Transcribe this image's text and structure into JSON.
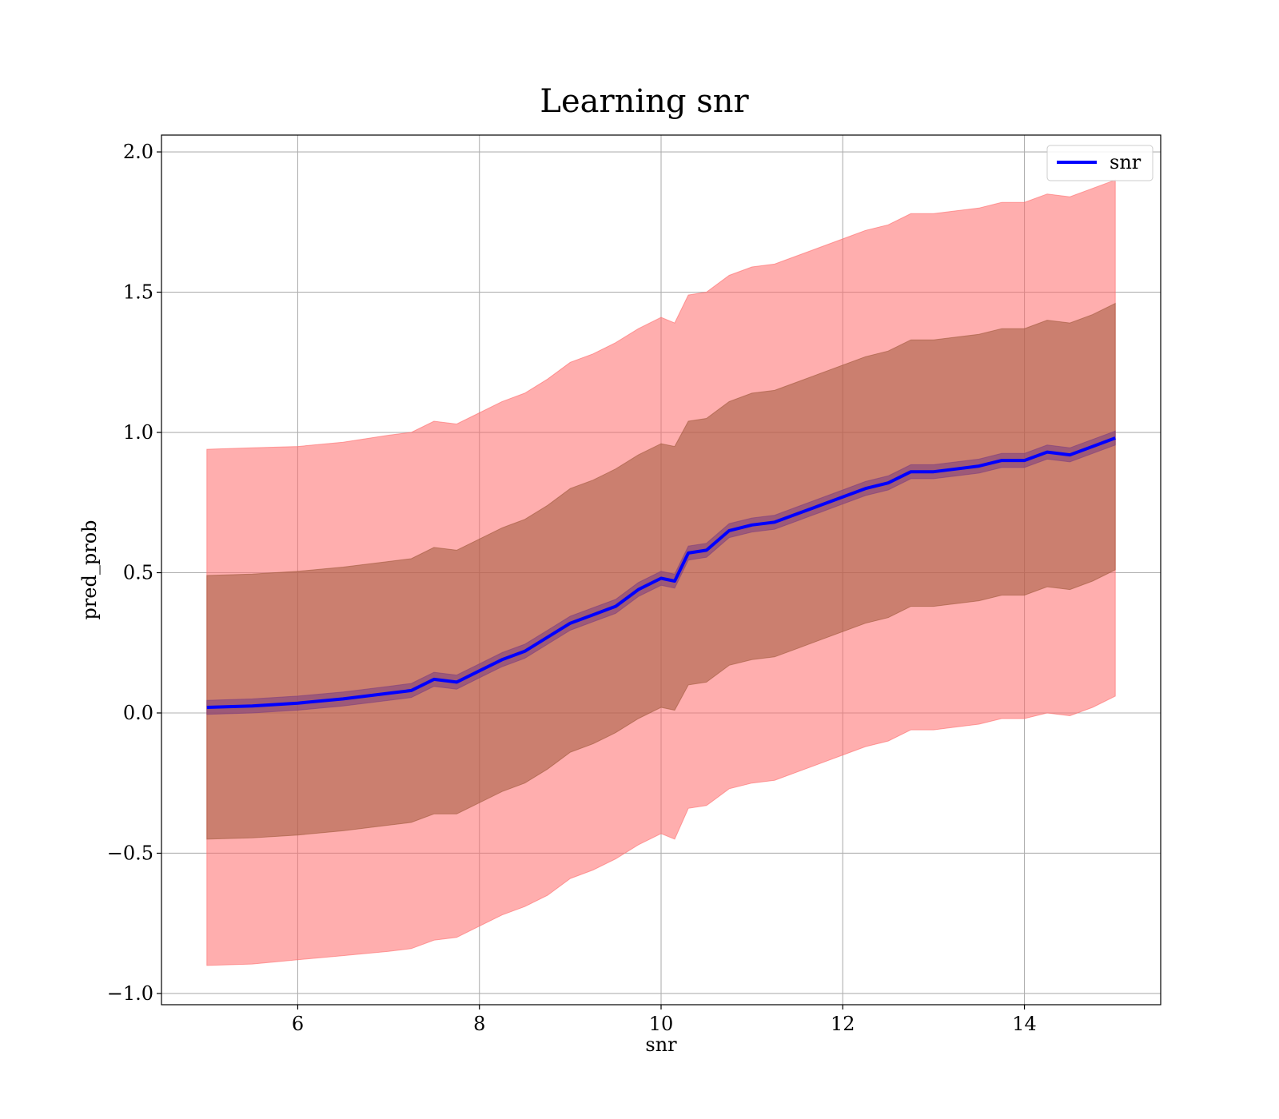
{
  "chart_data": {
    "type": "line",
    "title": "Learning snr",
    "xlabel": "snr",
    "ylabel": "pred_prob",
    "xlim": [
      4.5,
      15.5
    ],
    "ylim": [
      -1.04,
      2.06
    ],
    "xticks": [
      6,
      8,
      10,
      12,
      14
    ],
    "xtick_labels": [
      "6",
      "8",
      "10",
      "12",
      "14"
    ],
    "yticks": [
      -1.0,
      -0.5,
      0.0,
      0.5,
      1.0,
      1.5,
      2.0
    ],
    "ytick_labels": [
      "−1.0",
      "−0.5",
      "0.0",
      "0.5",
      "1.0",
      "1.5",
      "2.0"
    ],
    "grid": true,
    "legend": {
      "position": "top-right",
      "entries": [
        "snr"
      ]
    },
    "colors": {
      "line": "#0000ff",
      "inner_band": "#7f3f7f",
      "middle_band": "#a05a3c",
      "outer_band": "#ff6b6b"
    },
    "x": [
      5.0,
      5.5,
      6.0,
      6.5,
      7.0,
      7.25,
      7.5,
      7.75,
      8.0,
      8.25,
      8.5,
      8.75,
      9.0,
      9.25,
      9.5,
      9.75,
      10.0,
      10.15,
      10.3,
      10.5,
      10.75,
      11.0,
      11.25,
      11.5,
      11.75,
      12.0,
      12.25,
      12.5,
      12.75,
      13.0,
      13.25,
      13.5,
      13.75,
      14.0,
      14.25,
      14.5,
      14.75,
      15.0
    ],
    "series": [
      {
        "name": "snr",
        "values": [
          0.02,
          0.025,
          0.035,
          0.05,
          0.07,
          0.08,
          0.12,
          0.11,
          0.15,
          0.19,
          0.22,
          0.27,
          0.32,
          0.35,
          0.38,
          0.44,
          0.48,
          0.47,
          0.57,
          0.58,
          0.65,
          0.67,
          0.68,
          0.71,
          0.74,
          0.77,
          0.8,
          0.82,
          0.86,
          0.86,
          0.87,
          0.88,
          0.9,
          0.9,
          0.93,
          0.92,
          0.95,
          0.98
        ]
      }
    ],
    "bands": [
      {
        "lower": [
          -0.9,
          -0.895,
          -0.88,
          -0.865,
          -0.85,
          -0.84,
          -0.81,
          -0.8,
          -0.76,
          -0.72,
          -0.69,
          -0.65,
          -0.59,
          -0.56,
          -0.52,
          -0.47,
          -0.43,
          -0.45,
          -0.34,
          -0.33,
          -0.27,
          -0.25,
          -0.24,
          -0.21,
          -0.18,
          -0.15,
          -0.12,
          -0.1,
          -0.06,
          -0.06,
          -0.05,
          -0.04,
          -0.02,
          -0.02,
          0.0,
          -0.01,
          0.02,
          0.06
        ],
        "upper": [
          0.94,
          0.945,
          0.95,
          0.965,
          0.99,
          1.0,
          1.04,
          1.03,
          1.07,
          1.11,
          1.14,
          1.19,
          1.25,
          1.28,
          1.32,
          1.37,
          1.41,
          1.39,
          1.49,
          1.5,
          1.56,
          1.59,
          1.6,
          1.63,
          1.66,
          1.69,
          1.72,
          1.74,
          1.78,
          1.78,
          1.79,
          1.8,
          1.82,
          1.82,
          1.85,
          1.84,
          1.87,
          1.9
        ]
      },
      {
        "lower": [
          -0.45,
          -0.445,
          -0.435,
          -0.42,
          -0.4,
          -0.39,
          -0.36,
          -0.36,
          -0.32,
          -0.28,
          -0.25,
          -0.2,
          -0.14,
          -0.11,
          -0.07,
          -0.02,
          0.02,
          0.01,
          0.1,
          0.11,
          0.17,
          0.19,
          0.2,
          0.23,
          0.26,
          0.29,
          0.32,
          0.34,
          0.38,
          0.38,
          0.39,
          0.4,
          0.42,
          0.42,
          0.45,
          0.44,
          0.47,
          0.51
        ],
        "upper": [
          0.49,
          0.495,
          0.505,
          0.52,
          0.54,
          0.55,
          0.59,
          0.58,
          0.62,
          0.66,
          0.69,
          0.74,
          0.8,
          0.83,
          0.87,
          0.92,
          0.96,
          0.95,
          1.04,
          1.05,
          1.11,
          1.14,
          1.15,
          1.18,
          1.21,
          1.24,
          1.27,
          1.29,
          1.33,
          1.33,
          1.34,
          1.35,
          1.37,
          1.37,
          1.4,
          1.39,
          1.42,
          1.46
        ]
      },
      {
        "lower": [
          -0.005,
          0.0,
          0.01,
          0.025,
          0.045,
          0.055,
          0.095,
          0.085,
          0.125,
          0.165,
          0.195,
          0.245,
          0.295,
          0.325,
          0.355,
          0.415,
          0.455,
          0.445,
          0.545,
          0.555,
          0.625,
          0.645,
          0.655,
          0.685,
          0.715,
          0.745,
          0.775,
          0.795,
          0.835,
          0.835,
          0.845,
          0.855,
          0.875,
          0.875,
          0.905,
          0.895,
          0.925,
          0.955
        ],
        "upper": [
          0.045,
          0.05,
          0.06,
          0.075,
          0.095,
          0.105,
          0.145,
          0.135,
          0.175,
          0.215,
          0.245,
          0.295,
          0.345,
          0.375,
          0.405,
          0.465,
          0.505,
          0.495,
          0.595,
          0.605,
          0.675,
          0.695,
          0.705,
          0.735,
          0.765,
          0.795,
          0.825,
          0.845,
          0.885,
          0.885,
          0.895,
          0.905,
          0.925,
          0.925,
          0.955,
          0.945,
          0.975,
          1.005
        ]
      }
    ]
  }
}
